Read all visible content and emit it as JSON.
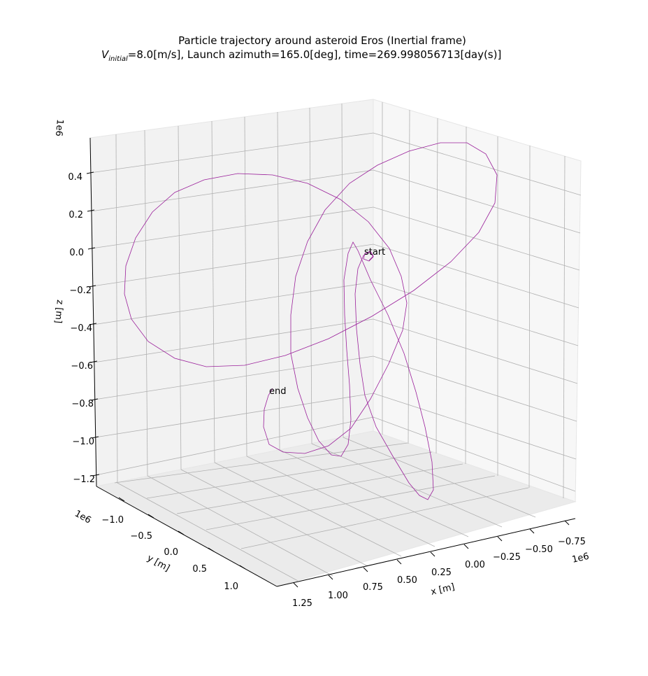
{
  "chart_data": {
    "type": "line",
    "projection": "3d",
    "title_line1": "Particle trajectory around asteroid Eros (Inertial frame)",
    "title_line2_prefix": "V",
    "title_line2_sub": "initial",
    "title_line2_rest": "=8.0[m/s], Launch azimuth=165.0[deg], time=269.998056713[day(s)]",
    "xlabel": "x [m]",
    "ylabel": "y [m]",
    "zlabel": "z [m]",
    "x_offset": "1e6",
    "y_offset": "1e6",
    "z_offset": "1e6",
    "x_ticks": [
      "−0.75",
      "−0.50",
      "−0.25",
      "0.00",
      "0.25",
      "0.50",
      "0.75",
      "1.00",
      "1.25"
    ],
    "y_ticks": [
      "−1.0",
      "−0.5",
      "0.0",
      "0.5",
      "1.0"
    ],
    "z_ticks": [
      "0.4",
      "0.2",
      "0.0",
      "−0.2",
      "−0.4",
      "−0.6",
      "−0.8",
      "−1.0",
      "−1.2"
    ],
    "xlim": [
      -0.75,
      1.25
    ],
    "ylim": [
      -1.2,
      1.2
    ],
    "zlim": [
      -1.3,
      0.5
    ],
    "grid": true,
    "annotations": [
      {
        "text": "start"
      },
      {
        "text": "end"
      }
    ],
    "series": [
      {
        "color": "#9a1f9a",
        "trajectory_projected": [
          [
            528,
            372
          ],
          [
            534,
            366
          ],
          [
            530,
            359
          ],
          [
            522,
            362
          ],
          [
            520,
            370
          ],
          [
            528,
            373
          ],
          [
            534,
            367
          ],
          [
            529,
            360
          ],
          [
            520,
            365
          ],
          [
            512,
            384
          ],
          [
            508,
            420
          ],
          [
            510,
            470
          ],
          [
            515,
            520
          ],
          [
            522,
            565
          ],
          [
            538,
            610
          ],
          [
            562,
            652
          ],
          [
            585,
            690
          ],
          [
            600,
            708
          ],
          [
            612,
            714
          ],
          [
            620,
            700
          ],
          [
            618,
            660
          ],
          [
            608,
            610
          ],
          [
            595,
            560
          ],
          [
            578,
            505
          ],
          [
            555,
            450
          ],
          [
            530,
            400
          ],
          [
            512,
            358
          ],
          [
            505,
            346
          ],
          [
            498,
            362
          ],
          [
            492,
            400
          ],
          [
            493,
            450
          ],
          [
            496,
            500
          ],
          [
            500,
            550
          ],
          [
            502,
            600
          ],
          [
            498,
            635
          ],
          [
            488,
            652
          ],
          [
            474,
            650
          ],
          [
            456,
            630
          ],
          [
            440,
            597
          ],
          [
            426,
            555
          ],
          [
            416,
            505
          ],
          [
            416,
            450
          ],
          [
            423,
            395
          ],
          [
            440,
            345
          ],
          [
            465,
            300
          ],
          [
            500,
            262
          ],
          [
            540,
            236
          ],
          [
            585,
            216
          ],
          [
            630,
            204
          ],
          [
            668,
            204
          ],
          [
            695,
            220
          ],
          [
            711,
            250
          ],
          [
            708,
            290
          ],
          [
            685,
            332
          ],
          [
            645,
            374
          ],
          [
            592,
            415
          ],
          [
            532,
            452
          ],
          [
            470,
            484
          ],
          [
            408,
            508
          ],
          [
            350,
            522
          ],
          [
            295,
            524
          ],
          [
            250,
            512
          ],
          [
            212,
            488
          ],
          [
            188,
            456
          ],
          [
            178,
            420
          ],
          [
            180,
            380
          ],
          [
            194,
            340
          ],
          [
            218,
            303
          ],
          [
            250,
            275
          ],
          [
            292,
            257
          ],
          [
            340,
            248
          ],
          [
            390,
            250
          ],
          [
            440,
            262
          ],
          [
            487,
            285
          ],
          [
            527,
            317
          ],
          [
            557,
            355
          ],
          [
            574,
            395
          ],
          [
            582,
            433
          ],
          [
            576,
            472
          ],
          [
            556,
            520
          ],
          [
            530,
            570
          ],
          [
            502,
            612
          ],
          [
            470,
            637
          ],
          [
            436,
            648
          ],
          [
            405,
            646
          ],
          [
            385,
            635
          ],
          [
            377,
            610
          ],
          [
            378,
            585
          ],
          [
            384,
            565
          ],
          [
            390,
            555
          ]
        ]
      }
    ]
  }
}
